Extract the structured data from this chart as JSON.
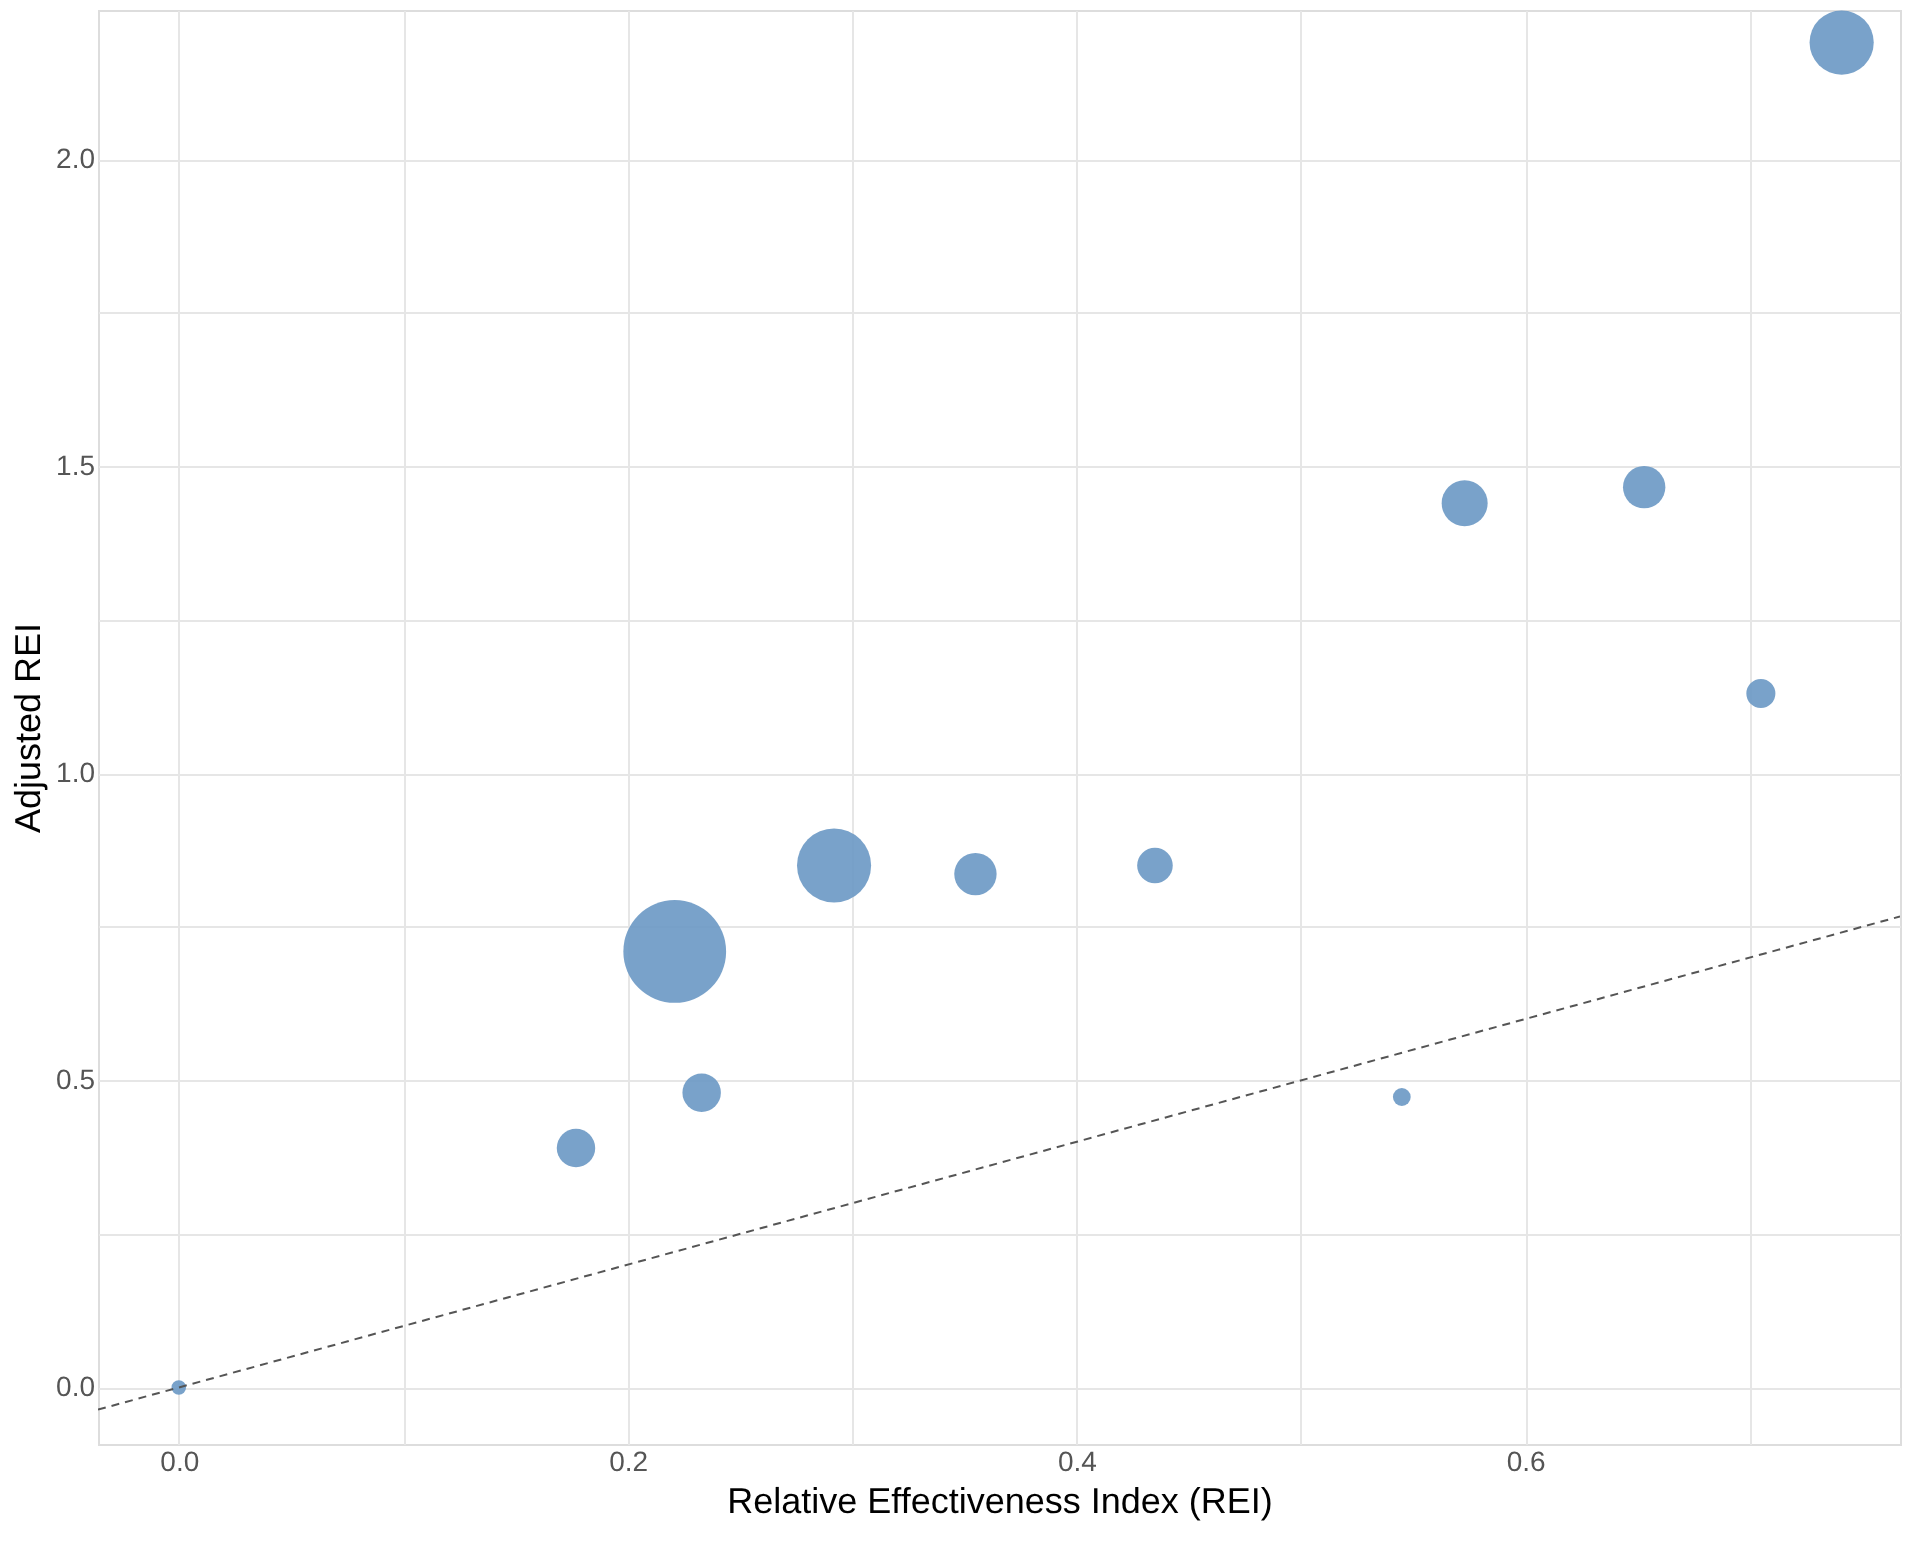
{
  "chart_data": {
    "type": "bubble",
    "xlabel": "Relative Effectiveness Index (REI)",
    "ylabel": "Adjusted REI",
    "xlim": [
      -0.036,
      0.767
    ],
    "ylim": [
      -0.092,
      2.243
    ],
    "xticks": [
      {
        "value": 0,
        "label": "0.0"
      },
      {
        "value": 0.1,
        "label": null
      },
      {
        "value": 0.2,
        "label": "0.2"
      },
      {
        "value": 0.3,
        "label": null
      },
      {
        "value": 0.4,
        "label": "0.4"
      },
      {
        "value": 0.5,
        "label": null
      },
      {
        "value": 0.6,
        "label": "0.6"
      },
      {
        "value": 0.7,
        "label": null
      }
    ],
    "yticks": [
      {
        "value": 0,
        "label": "0.0"
      },
      {
        "value": 0.25,
        "label": null
      },
      {
        "value": 0.5,
        "label": "0.5"
      },
      {
        "value": 0.75,
        "label": null
      },
      {
        "value": 1,
        "label": "1.0"
      },
      {
        "value": 1.25,
        "label": null
      },
      {
        "value": 1.5,
        "label": "1.5"
      },
      {
        "value": 1.75,
        "label": null
      },
      {
        "value": 2,
        "label": "2.0"
      }
    ],
    "grid": true,
    "series": [
      {
        "color": "#6a98c4",
        "x": [
          0,
          0.177,
          0.233,
          0.221,
          0.292,
          0.355,
          0.435,
          0.545,
          0.573,
          0.653,
          0.705,
          0.741
        ],
        "values": [
          0,
          0.39,
          0.48,
          0.71,
          0.85,
          0.836,
          0.85,
          0.473,
          1.44,
          1.466,
          1.13,
          2.19
        ],
        "sizes": [
          0.02,
          0.14,
          0.14,
          1,
          0.52,
          0.17,
          0.12,
          0.03,
          0.2,
          0.17,
          0.08,
          0.39
        ]
      },
      {
        "type": "line",
        "color": "#555555",
        "line_style": "dashed",
        "x": [
          -0.036,
          0.767
        ],
        "values": [
          -0.036,
          0.767
        ]
      }
    ]
  }
}
